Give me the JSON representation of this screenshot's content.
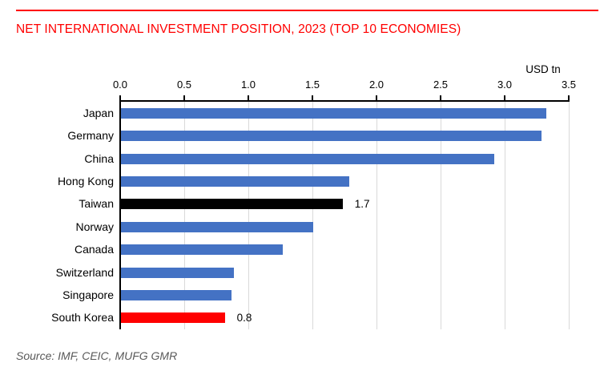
{
  "header": {
    "title": "NET INTERNATIONAL INVESTMENT POSITION, 2023 (TOP 10 ECONOMIES)"
  },
  "footer": {
    "source": "Source: IMF, CEIC, MUFG GMR"
  },
  "chart_data": {
    "type": "bar",
    "orientation": "horizontal",
    "title": "NET INTERNATIONAL INVESTMENT POSITION, 2023 (TOP 10 ECONOMIES)",
    "unit_label": "USD tn",
    "categories": [
      "Japan",
      "Germany",
      "China",
      "Hong Kong",
      "Taiwan",
      "Norway",
      "Canada",
      "Switzerland",
      "Singapore",
      "South Korea"
    ],
    "values": [
      3.32,
      3.28,
      2.91,
      1.78,
      1.73,
      1.5,
      1.26,
      0.88,
      0.86,
      0.81
    ],
    "bar_colors": [
      "#4472C4",
      "#4472C4",
      "#4472C4",
      "#4472C4",
      "#000000",
      "#4472C4",
      "#4472C4",
      "#4472C4",
      "#4472C4",
      "#FF0000"
    ],
    "data_labels": [
      "",
      "",
      "",
      "",
      "1.7",
      "",
      "",
      "",
      "",
      "0.8"
    ],
    "xlim": [
      0,
      3.5
    ],
    "x_tick_labels": [
      "0.0",
      "0.5",
      "1.0",
      "1.5",
      "2.0",
      "2.5",
      "3.0",
      "3.5"
    ],
    "grid": "vertical",
    "legend_position": "none",
    "axis_position": "top",
    "source": "Source: IMF, CEIC, MUFG GMR",
    "colors": {
      "default_bar": "#4472C4",
      "highlight_black": "#000000",
      "highlight_red": "#FF0000",
      "title_red": "#FF0000",
      "gridline": "#D9D9D9",
      "axis": "#000000",
      "source_text": "#595959"
    }
  }
}
